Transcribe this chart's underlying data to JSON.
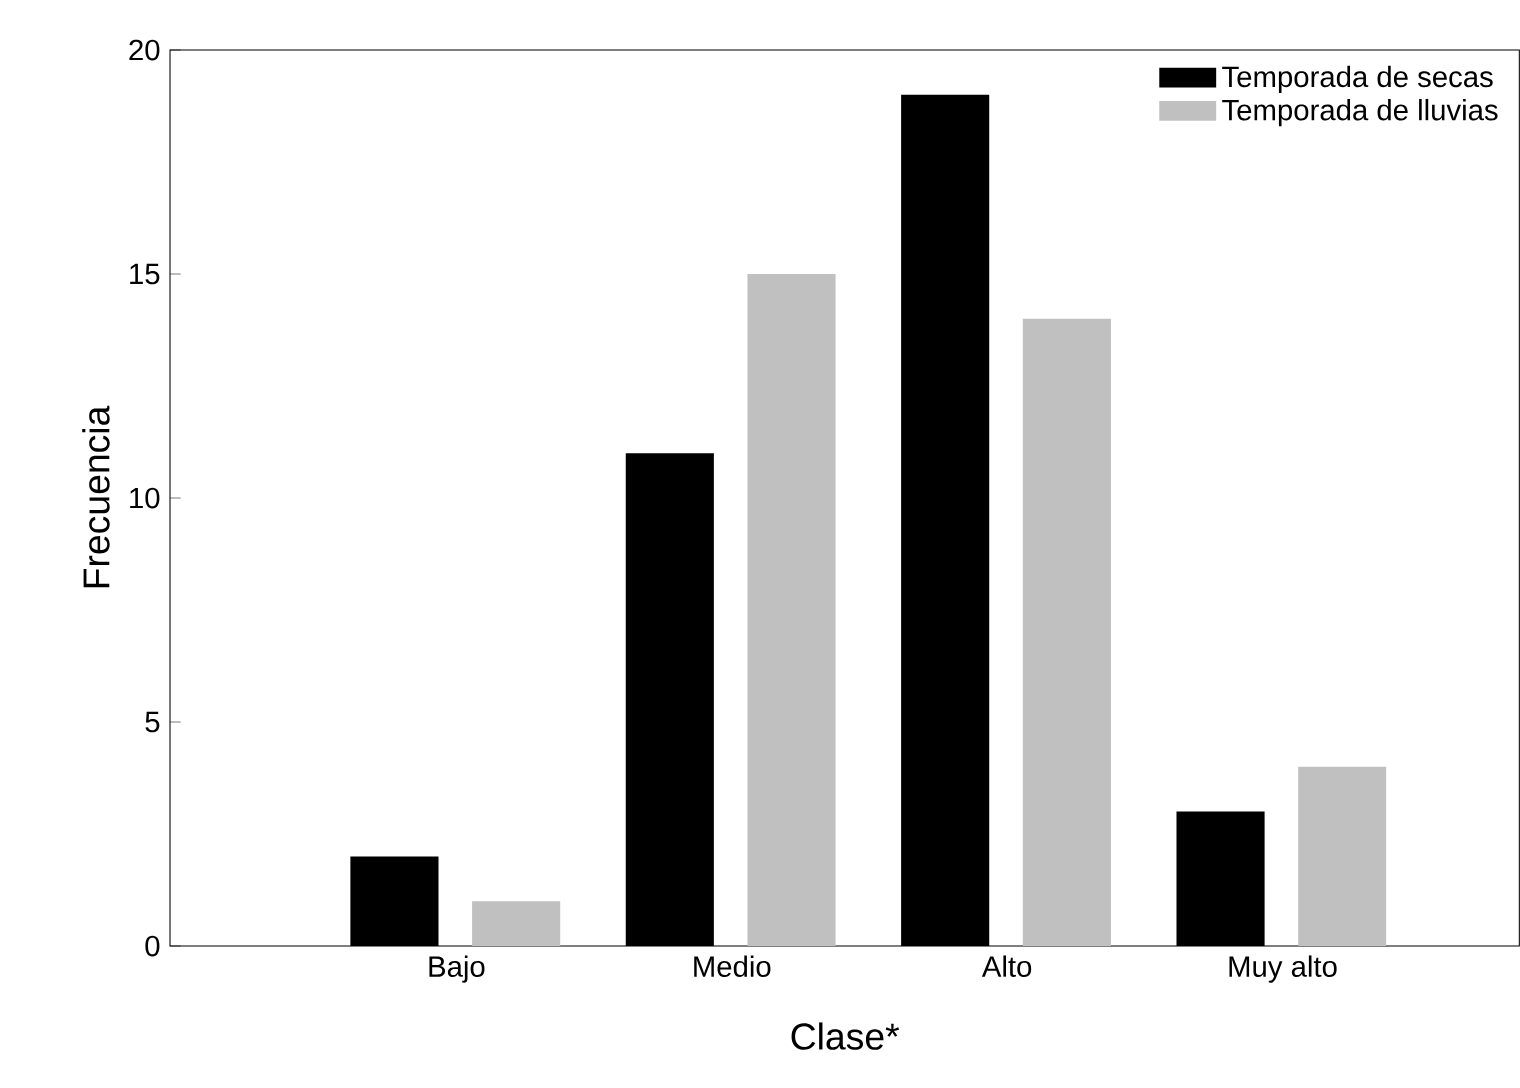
{
  "chart_data": {
    "type": "bar",
    "xlabel": "Clase*",
    "ylabel": "Frecuencia",
    "categories": [
      "Bajo",
      "Medio",
      "Alto",
      "Muy alto"
    ],
    "series": [
      {
        "name": "Temporada de secas",
        "color": "#000000",
        "values": [
          2,
          11,
          19,
          3
        ]
      },
      {
        "name": "Temporada de lluvias",
        "color": "#c0c0c0",
        "values": [
          1,
          15,
          14,
          4
        ]
      }
    ],
    "ylim": [
      0,
      20
    ],
    "yticks": [
      0,
      5,
      10,
      15,
      20
    ],
    "legend": "top right"
  }
}
